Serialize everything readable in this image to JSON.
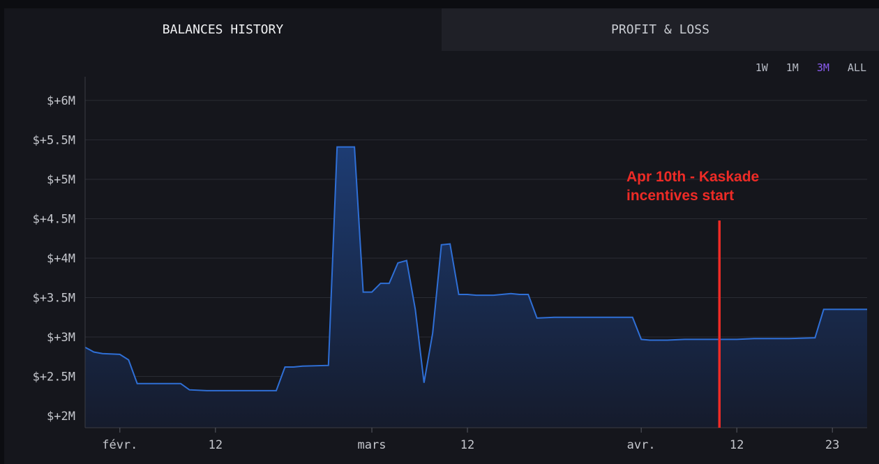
{
  "tabs": [
    {
      "label": "BALANCES HISTORY",
      "active": true
    },
    {
      "label": "PROFIT & LOSS",
      "active": false
    }
  ],
  "ranges": [
    {
      "label": "1W",
      "active": false
    },
    {
      "label": "1M",
      "active": false
    },
    {
      "label": "3M",
      "active": true
    },
    {
      "label": "ALL",
      "active": false
    }
  ],
  "annotation": {
    "text": "Apr 10th - Kaskade\nincentives start",
    "color": "#ee2b26",
    "x": "2024-04-10"
  },
  "colors": {
    "line": "#2f6fd6",
    "fill_top": "#1d3c73",
    "fill_bottom": "#151b2c",
    "grid": "#2a2c33",
    "accent": "#8a5cf0"
  },
  "chart_data": {
    "type": "area",
    "title": "",
    "xlabel": "",
    "ylabel": "",
    "grid": true,
    "ylim": [
      1.85,
      6.3
    ],
    "xlim": [
      "2024-01-28",
      "2024-04-27"
    ],
    "yticks": [
      {
        "value": 2.0,
        "label": "$+2M"
      },
      {
        "value": 2.5,
        "label": "$+2.5M"
      },
      {
        "value": 3.0,
        "label": "$+3M"
      },
      {
        "value": 3.5,
        "label": "$+3.5M"
      },
      {
        "value": 4.0,
        "label": "$+4M"
      },
      {
        "value": 4.5,
        "label": "$+4.5M"
      },
      {
        "value": 5.0,
        "label": "$+5M"
      },
      {
        "value": 5.5,
        "label": "$+5.5M"
      },
      {
        "value": 6.0,
        "label": "$+6M"
      }
    ],
    "xticks": [
      {
        "date": "2024-02-01",
        "label": "févr."
      },
      {
        "date": "2024-02-12",
        "label": "12"
      },
      {
        "date": "2024-03-01",
        "label": "mars"
      },
      {
        "date": "2024-03-12",
        "label": "12"
      },
      {
        "date": "2024-04-01",
        "label": "avr."
      },
      {
        "date": "2024-04-12",
        "label": "12"
      },
      {
        "date": "2024-04-23",
        "label": "23"
      }
    ],
    "series": [
      {
        "points": [
          [
            "2024-01-28",
            2.87
          ],
          [
            "2024-01-29",
            2.81
          ],
          [
            "2024-01-30",
            2.79
          ],
          [
            "2024-02-01",
            2.78
          ],
          [
            "2024-02-02",
            2.71
          ],
          [
            "2024-02-03",
            2.41
          ],
          [
            "2024-02-08",
            2.41
          ],
          [
            "2024-02-09",
            2.33
          ],
          [
            "2024-02-11",
            2.32
          ],
          [
            "2024-02-16",
            2.32
          ],
          [
            "2024-02-19",
            2.32
          ],
          [
            "2024-02-20",
            2.62
          ],
          [
            "2024-02-21",
            2.62
          ],
          [
            "2024-02-22",
            2.63
          ],
          [
            "2024-02-25",
            2.64
          ],
          [
            "2024-02-26",
            5.41
          ],
          [
            "2024-02-28",
            5.41
          ],
          [
            "2024-02-29",
            3.57
          ],
          [
            "2024-03-01",
            3.57
          ],
          [
            "2024-03-02",
            3.68
          ],
          [
            "2024-03-03",
            3.68
          ],
          [
            "2024-03-04",
            3.94
          ],
          [
            "2024-03-05",
            3.97
          ],
          [
            "2024-03-06",
            3.35
          ],
          [
            "2024-03-07",
            2.42
          ],
          [
            "2024-03-08",
            3.05
          ],
          [
            "2024-03-09",
            4.17
          ],
          [
            "2024-03-10",
            4.18
          ],
          [
            "2024-03-11",
            3.54
          ],
          [
            "2024-03-12",
            3.54
          ],
          [
            "2024-03-13",
            3.53
          ],
          [
            "2024-03-15",
            3.53
          ],
          [
            "2024-03-17",
            3.55
          ],
          [
            "2024-03-18",
            3.54
          ],
          [
            "2024-03-19",
            3.54
          ],
          [
            "2024-03-20",
            3.24
          ],
          [
            "2024-03-22",
            3.25
          ],
          [
            "2024-03-23",
            3.25
          ],
          [
            "2024-03-26",
            3.25
          ],
          [
            "2024-03-29",
            3.25
          ],
          [
            "2024-03-31",
            3.25
          ],
          [
            "2024-04-01",
            2.97
          ],
          [
            "2024-04-02",
            2.96
          ],
          [
            "2024-04-04",
            2.96
          ],
          [
            "2024-04-06",
            2.97
          ],
          [
            "2024-04-08",
            2.97
          ],
          [
            "2024-04-10",
            2.97
          ],
          [
            "2024-04-12",
            2.97
          ],
          [
            "2024-04-14",
            2.98
          ],
          [
            "2024-04-18",
            2.98
          ],
          [
            "2024-04-21",
            2.99
          ],
          [
            "2024-04-22",
            3.35
          ],
          [
            "2024-04-24",
            3.35
          ],
          [
            "2024-04-27",
            3.35
          ]
        ]
      }
    ]
  }
}
